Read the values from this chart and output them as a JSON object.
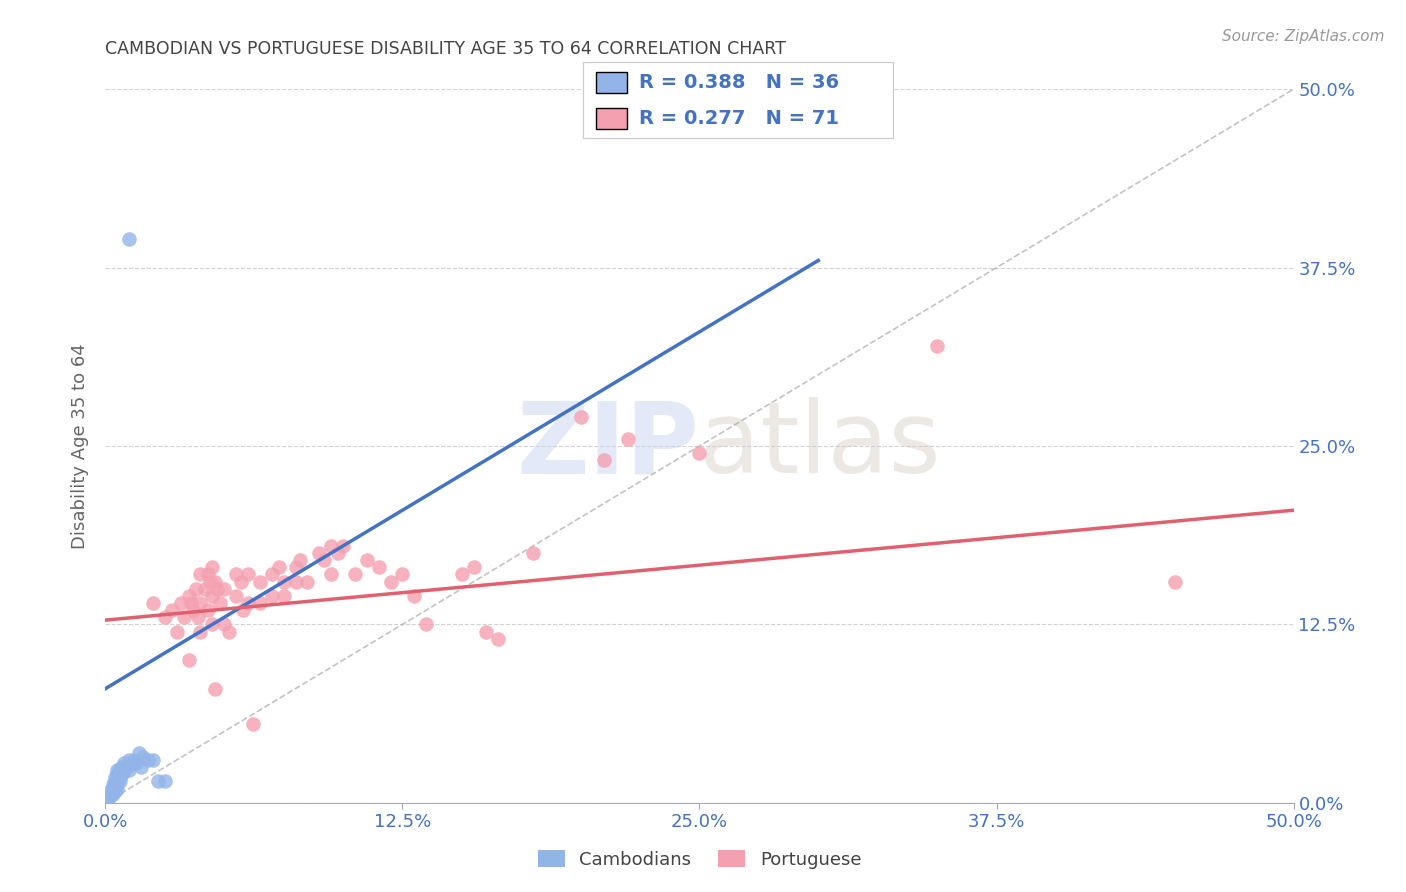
{
  "title": "CAMBODIAN VS PORTUGUESE DISABILITY AGE 35 TO 64 CORRELATION CHART",
  "source": "Source: ZipAtlas.com",
  "ylabel": "Disability Age 35 to 64",
  "xlim": [
    0.0,
    0.5
  ],
  "ylim": [
    0.0,
    0.5
  ],
  "xticks": [
    0.0,
    0.125,
    0.25,
    0.375,
    0.5
  ],
  "yticks": [
    0.0,
    0.125,
    0.25,
    0.375,
    0.5
  ],
  "cambodian_color": "#92b4e8",
  "portuguese_color": "#f4a0b0",
  "cambodian_R": 0.388,
  "cambodian_N": 36,
  "portuguese_R": 0.277,
  "portuguese_N": 71,
  "line_color_blue": "#4472c4",
  "line_color_pink": "#e06070",
  "diagonal_color": "#aaaaaa",
  "title_color": "#444444",
  "axis_label_color": "#666666",
  "tick_color_blue": "#4472c4",
  "watermark_zip": "ZIP",
  "watermark_atlas": "atlas",
  "background_color": "#ffffff",
  "cambodian_points": [
    [
      0.001,
      0.002
    ],
    [
      0.002,
      0.005
    ],
    [
      0.002,
      0.008
    ],
    [
      0.003,
      0.006
    ],
    [
      0.003,
      0.01
    ],
    [
      0.003,
      0.013
    ],
    [
      0.004,
      0.008
    ],
    [
      0.004,
      0.012
    ],
    [
      0.004,
      0.015
    ],
    [
      0.004,
      0.018
    ],
    [
      0.005,
      0.01
    ],
    [
      0.005,
      0.013
    ],
    [
      0.005,
      0.017
    ],
    [
      0.005,
      0.02
    ],
    [
      0.005,
      0.023
    ],
    [
      0.006,
      0.015
    ],
    [
      0.006,
      0.018
    ],
    [
      0.006,
      0.024
    ],
    [
      0.007,
      0.02
    ],
    [
      0.007,
      0.025
    ],
    [
      0.008,
      0.022
    ],
    [
      0.008,
      0.028
    ],
    [
      0.009,
      0.025
    ],
    [
      0.01,
      0.023
    ],
    [
      0.01,
      0.03
    ],
    [
      0.011,
      0.027
    ],
    [
      0.012,
      0.03
    ],
    [
      0.013,
      0.028
    ],
    [
      0.014,
      0.035
    ],
    [
      0.015,
      0.025
    ],
    [
      0.016,
      0.032
    ],
    [
      0.018,
      0.03
    ],
    [
      0.02,
      0.03
    ],
    [
      0.022,
      0.015
    ],
    [
      0.025,
      0.015
    ],
    [
      0.01,
      0.395
    ]
  ],
  "portuguese_points": [
    [
      0.02,
      0.14
    ],
    [
      0.025,
      0.13
    ],
    [
      0.028,
      0.135
    ],
    [
      0.03,
      0.12
    ],
    [
      0.032,
      0.14
    ],
    [
      0.033,
      0.13
    ],
    [
      0.035,
      0.145
    ],
    [
      0.035,
      0.1
    ],
    [
      0.036,
      0.14
    ],
    [
      0.037,
      0.135
    ],
    [
      0.038,
      0.15
    ],
    [
      0.039,
      0.13
    ],
    [
      0.04,
      0.14
    ],
    [
      0.04,
      0.16
    ],
    [
      0.04,
      0.12
    ],
    [
      0.042,
      0.15
    ],
    [
      0.043,
      0.135
    ],
    [
      0.043,
      0.16
    ],
    [
      0.044,
      0.155
    ],
    [
      0.045,
      0.145
    ],
    [
      0.045,
      0.165
    ],
    [
      0.045,
      0.125
    ],
    [
      0.046,
      0.08
    ],
    [
      0.046,
      0.155
    ],
    [
      0.047,
      0.15
    ],
    [
      0.048,
      0.14
    ],
    [
      0.05,
      0.15
    ],
    [
      0.05,
      0.125
    ],
    [
      0.052,
      0.12
    ],
    [
      0.055,
      0.16
    ],
    [
      0.055,
      0.145
    ],
    [
      0.057,
      0.155
    ],
    [
      0.058,
      0.135
    ],
    [
      0.06,
      0.16
    ],
    [
      0.06,
      0.14
    ],
    [
      0.062,
      0.055
    ],
    [
      0.065,
      0.155
    ],
    [
      0.065,
      0.14
    ],
    [
      0.07,
      0.16
    ],
    [
      0.07,
      0.145
    ],
    [
      0.073,
      0.165
    ],
    [
      0.075,
      0.155
    ],
    [
      0.075,
      0.145
    ],
    [
      0.08,
      0.165
    ],
    [
      0.08,
      0.155
    ],
    [
      0.082,
      0.17
    ],
    [
      0.085,
      0.155
    ],
    [
      0.09,
      0.175
    ],
    [
      0.092,
      0.17
    ],
    [
      0.095,
      0.18
    ],
    [
      0.095,
      0.16
    ],
    [
      0.098,
      0.175
    ],
    [
      0.1,
      0.18
    ],
    [
      0.105,
      0.16
    ],
    [
      0.11,
      0.17
    ],
    [
      0.115,
      0.165
    ],
    [
      0.12,
      0.155
    ],
    [
      0.125,
      0.16
    ],
    [
      0.13,
      0.145
    ],
    [
      0.135,
      0.125
    ],
    [
      0.15,
      0.16
    ],
    [
      0.155,
      0.165
    ],
    [
      0.16,
      0.12
    ],
    [
      0.165,
      0.115
    ],
    [
      0.18,
      0.175
    ],
    [
      0.2,
      0.27
    ],
    [
      0.21,
      0.24
    ],
    [
      0.22,
      0.255
    ],
    [
      0.25,
      0.245
    ],
    [
      0.35,
      0.32
    ],
    [
      0.45,
      0.155
    ]
  ],
  "cam_line_x": [
    0.0,
    0.3
  ],
  "cam_line_y": [
    0.08,
    0.38
  ],
  "por_line_x": [
    0.0,
    0.5
  ],
  "por_line_y": [
    0.128,
    0.205
  ]
}
